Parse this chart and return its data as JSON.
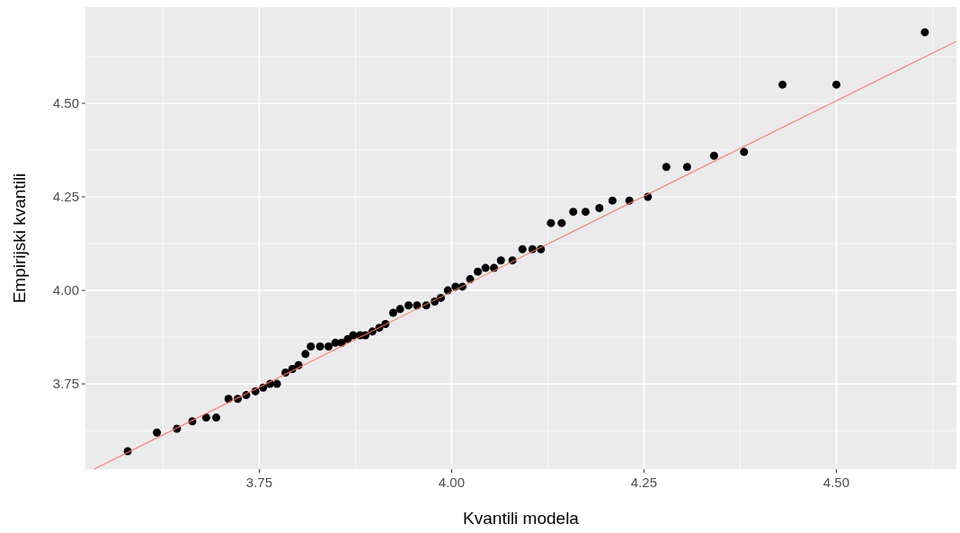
{
  "chart_data": {
    "type": "scatter",
    "xlabel": "Kvantili modela",
    "ylabel": "Empirijski kvantili",
    "xlim": [
      3.524,
      4.656
    ],
    "ylim": [
      3.522,
      4.757
    ],
    "xticks": [
      {
        "value": 3.75,
        "label": "3.75"
      },
      {
        "value": 4,
        "label": "4.00"
      },
      {
        "value": 4.25,
        "label": "4.25"
      },
      {
        "value": 4.5,
        "label": "4.50"
      }
    ],
    "yticks": [
      {
        "value": 3.75,
        "label": "3.75"
      },
      {
        "value": 4,
        "label": "4.00"
      },
      {
        "value": 4.25,
        "label": "4.25"
      },
      {
        "value": 4.5,
        "label": "4.50"
      }
    ],
    "grid": true,
    "series": [
      {
        "color": "#000000",
        "marker": "circle",
        "x": [
          3.579,
          3.617,
          3.643,
          3.663,
          3.681,
          3.694,
          3.71,
          3.722,
          3.733,
          3.745,
          3.755,
          3.764,
          3.773,
          3.784,
          3.793,
          3.801,
          3.81,
          3.817,
          3.829,
          3.84,
          3.849,
          3.857,
          3.865,
          3.872,
          3.881,
          3.888,
          3.897,
          3.906,
          3.914,
          3.924,
          3.933,
          3.944,
          3.955,
          3.967,
          3.978,
          3.986,
          3.995,
          4.005,
          4.014,
          4.024,
          4.034,
          4.044,
          4.055,
          4.064,
          4.079,
          4.092,
          4.105,
          4.116,
          4.129,
          4.143,
          4.158,
          4.174,
          4.192,
          4.209,
          4.231,
          4.255,
          4.279,
          4.306,
          4.341,
          4.38,
          4.43,
          4.5,
          4.615
        ],
        "values": [
          3.57,
          3.62,
          3.63,
          3.65,
          3.66,
          3.66,
          3.71,
          3.71,
          3.72,
          3.73,
          3.74,
          3.75,
          3.75,
          3.78,
          3.79,
          3.8,
          3.83,
          3.85,
          3.85,
          3.85,
          3.86,
          3.86,
          3.87,
          3.88,
          3.88,
          3.88,
          3.89,
          3.9,
          3.91,
          3.94,
          3.95,
          3.96,
          3.96,
          3.96,
          3.97,
          3.98,
          4.0,
          4.01,
          4.01,
          4.03,
          4.05,
          4.06,
          4.06,
          4.08,
          4.08,
          4.11,
          4.11,
          4.11,
          4.18,
          4.18,
          4.21,
          4.21,
          4.22,
          4.24,
          4.24,
          4.25,
          4.33,
          4.33,
          4.36,
          4.37,
          4.55,
          4.55,
          4.69
        ]
      },
      {
        "type": "line",
        "color": "#f8766d",
        "marker": "none",
        "line_style": "solid",
        "x": [
          3.535,
          4.656
        ],
        "values": [
          3.522,
          4.666
        ]
      }
    ]
  }
}
